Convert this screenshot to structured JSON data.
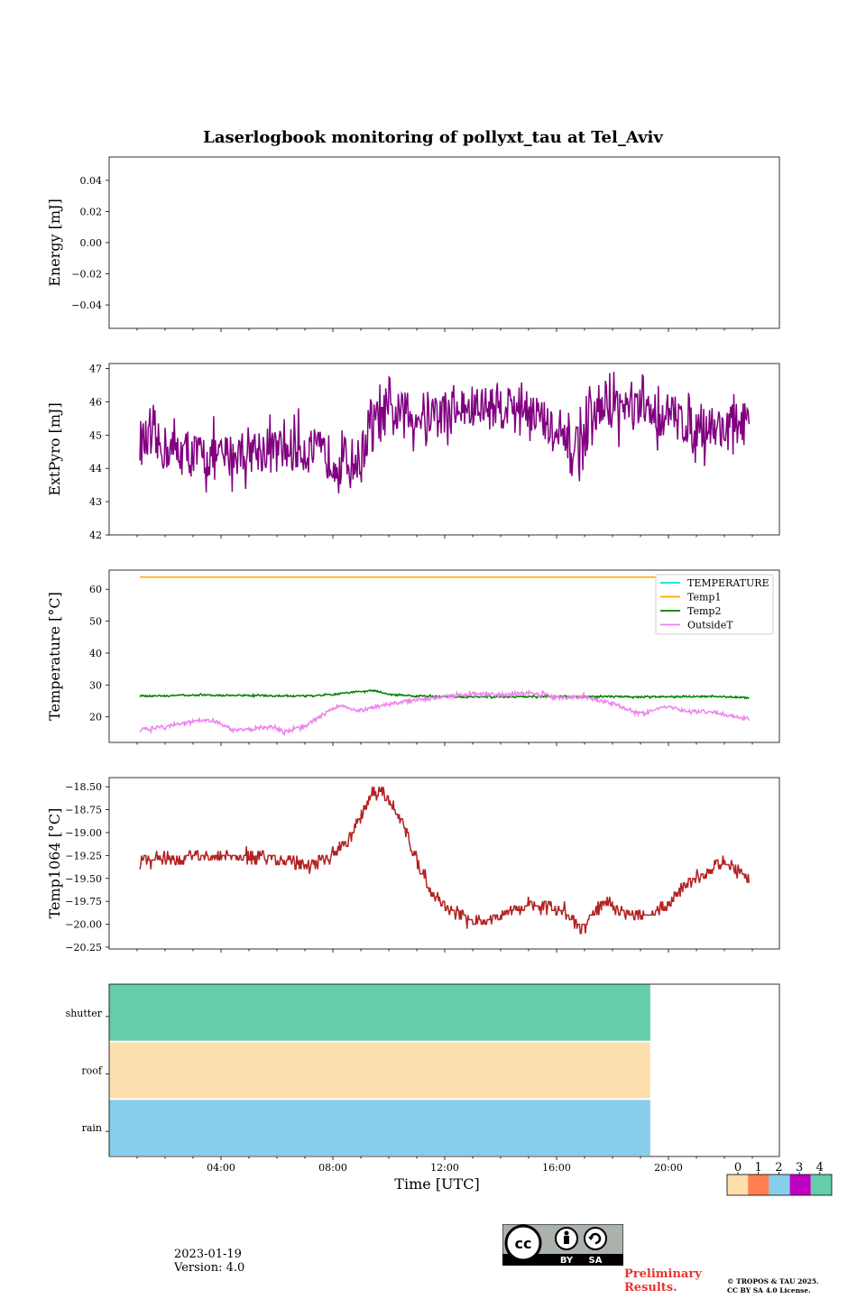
{
  "title": "Laserlogbook monitoring of pollyxt_tau at Tel_Aviv",
  "footer": {
    "date": "2023-01-19",
    "version": "Version: 4.0",
    "preliminary_line1": "Preliminary",
    "preliminary_line2": "Results.",
    "copyright_line1": "© TROPOS & TAU 2025.",
    "copyright_line2": "CC BY SA 4.0 License.",
    "cc_by": "BY",
    "cc_sa": "SA"
  },
  "colors": {
    "extpyro": "#800080",
    "temperature": "#00e5e5",
    "temp1": "#ffa500",
    "temp2": "#008000",
    "outsideT": "#ee82ee",
    "temp1064": "#b22222",
    "status_shutter": "#66cdaa",
    "status_roof": "#fddfad",
    "status_rain": "#87ceeb",
    "preliminary": "#e8352e"
  },
  "chart_data": [
    {
      "type": "line",
      "ylabel": "Energy [mJ]",
      "ylim": [
        -0.055,
        0.055
      ],
      "yticks": [
        "0.04",
        "0.02",
        "0.00",
        "−0.02",
        "−0.04"
      ],
      "ytick_values": [
        0.04,
        0.02,
        0.0,
        -0.02,
        -0.04
      ],
      "xlim_hours": [
        0,
        24
      ],
      "series": []
    },
    {
      "type": "line",
      "ylabel": "ExtPyro [mJ]",
      "ylim": [
        42,
        47.15
      ],
      "yticks": [
        "47",
        "46",
        "45",
        "44",
        "43",
        "42"
      ],
      "ytick_values": [
        47,
        46,
        45,
        44,
        43,
        42
      ],
      "xlim_hours": [
        0,
        24
      ],
      "series": [
        {
          "x_hours": [
            1.1,
            2.0,
            3.0,
            4.0,
            5.0,
            6.0,
            7.0,
            8.0,
            9.0,
            9.3,
            10.0,
            11.0,
            12.0,
            13.0,
            14.0,
            15.0,
            16.0,
            16.5,
            17.0,
            17.6,
            18.0,
            19.0,
            20.0,
            21.0,
            22.0,
            22.9
          ],
          "values": [
            44.8,
            44.6,
            44.4,
            44.3,
            44.6,
            44.5,
            44.6,
            44.3,
            44.2,
            45.3,
            45.6,
            45.6,
            45.7,
            45.8,
            45.9,
            45.9,
            44.9,
            44.5,
            45.0,
            45.8,
            45.9,
            45.7,
            45.6,
            45.3,
            45.2,
            45.4
          ]
        }
      ]
    },
    {
      "type": "line",
      "ylabel": "Temperature [°C]",
      "ylim": [
        12,
        66
      ],
      "yticks": [
        "60",
        "50",
        "40",
        "30",
        "20"
      ],
      "ytick_values": [
        60,
        50,
        40,
        30,
        20
      ],
      "xlim_hours": [
        0,
        24
      ],
      "legend": [
        "TEMPERATURE",
        "Temp1",
        "Temp2",
        "OutsideT"
      ],
      "legend_position": "upper right",
      "series": [
        {
          "name": "TEMPERATURE",
          "x_hours": [],
          "values": []
        },
        {
          "name": "Temp1",
          "x_hours": [
            1.1,
            22.9
          ],
          "values": [
            63.8,
            63.8
          ]
        },
        {
          "name": "Temp2",
          "x_hours": [
            1.1,
            3.0,
            5.0,
            7.0,
            8.0,
            9.0,
            9.5,
            10.0,
            11.0,
            12.0,
            13.0,
            14.0,
            15.0,
            16.0,
            17.0,
            18.0,
            19.0,
            20.0,
            21.0,
            22.0,
            22.9
          ],
          "values": [
            26.5,
            26.8,
            26.7,
            26.5,
            27.0,
            28.0,
            28.3,
            27.0,
            26.5,
            26.4,
            26.3,
            26.3,
            26.3,
            26.4,
            26.3,
            26.4,
            26.3,
            26.3,
            26.4,
            26.3,
            26.0
          ]
        },
        {
          "name": "OutsideT",
          "x_hours": [
            1.1,
            2.0,
            3.0,
            3.7,
            4.4,
            5.0,
            5.8,
            6.3,
            7.0,
            7.6,
            8.2,
            9.0,
            10.0,
            11.0,
            12.0,
            13.0,
            14.0,
            15.0,
            15.5,
            16.0,
            17.0,
            18.0,
            19.0,
            20.0,
            20.8,
            21.5,
            22.0,
            22.9
          ],
          "values": [
            15.8,
            17.0,
            18.5,
            19.0,
            15.8,
            16.0,
            16.8,
            15.2,
            17.0,
            20.5,
            23.3,
            22.0,
            24.0,
            25.2,
            26.3,
            27.2,
            27.0,
            27.5,
            27.2,
            26.0,
            26.3,
            24.2,
            21.0,
            23.2,
            21.5,
            21.8,
            20.8,
            19.3
          ]
        }
      ]
    },
    {
      "type": "line",
      "ylabel": "Temp1064 [°C]",
      "ylim": [
        -20.27,
        -18.4
      ],
      "yticks": [
        "−18.50",
        "−18.75",
        "−19.00",
        "−19.25",
        "−19.50",
        "−19.75",
        "−20.00",
        "−20.25"
      ],
      "ytick_values": [
        -18.5,
        -18.75,
        -19.0,
        -19.25,
        -19.5,
        -19.75,
        -20.0,
        -20.25
      ],
      "xlim_hours": [
        0,
        24
      ],
      "series": [
        {
          "x_hours": [
            1.1,
            2.0,
            3.0,
            4.0,
            5.0,
            6.0,
            7.0,
            7.8,
            8.5,
            9.0,
            9.4,
            9.8,
            10.4,
            11.0,
            11.4,
            12.0,
            12.6,
            13.0,
            14.0,
            15.0,
            15.8,
            16.5,
            16.9,
            17.4,
            17.8,
            18.2,
            19.0,
            20.0,
            20.5,
            21.0,
            21.5,
            22.0,
            22.5,
            22.9
          ],
          "values": [
            -19.3,
            -19.3,
            -19.25,
            -19.25,
            -19.25,
            -19.3,
            -19.35,
            -19.3,
            -19.1,
            -18.8,
            -18.6,
            -18.55,
            -18.85,
            -19.3,
            -19.6,
            -19.8,
            -19.9,
            -20.0,
            -19.9,
            -19.8,
            -19.8,
            -19.9,
            -20.05,
            -19.85,
            -19.75,
            -19.85,
            -19.9,
            -19.8,
            -19.6,
            -19.5,
            -19.4,
            -19.3,
            -19.45,
            -19.5
          ]
        }
      ]
    },
    {
      "type": "heatmap",
      "rows": [
        "shutter",
        "roof",
        "rain"
      ],
      "row_values": [
        4,
        0,
        2
      ],
      "x_end_hours": 19.35,
      "xlim_hours": [
        0,
        24
      ],
      "xlabel": "Time [UTC]",
      "xticks": [
        "04:00",
        "08:00",
        "12:00",
        "16:00",
        "20:00"
      ],
      "xtick_values": [
        4,
        8,
        12,
        16,
        20
      ],
      "colorbar_ticks": [
        "0",
        "1",
        "2",
        "3",
        "4"
      ],
      "colorbar_colors": [
        "#fddfad",
        "#ff7f50",
        "#87ceeb",
        "#c000c0",
        "#66cdaa"
      ]
    }
  ]
}
